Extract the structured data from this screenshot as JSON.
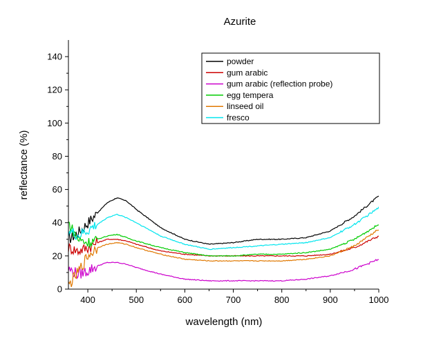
{
  "chart_data": {
    "type": "line",
    "title": "Azurite",
    "xlabel": "wavelength (nm)",
    "ylabel": "reflectance (%)",
    "xlim": [
      360,
      1000
    ],
    "ylim": [
      0,
      150
    ],
    "xticks": [
      400,
      500,
      600,
      700,
      800,
      900,
      1000
    ],
    "yticks": [
      0,
      20,
      40,
      60,
      80,
      100,
      120,
      140
    ],
    "grid": false,
    "legend_position": "top-right",
    "x": [
      360,
      380,
      400,
      420,
      440,
      460,
      480,
      500,
      550,
      600,
      650,
      700,
      750,
      800,
      850,
      900,
      950,
      1000
    ],
    "series": [
      {
        "name": "powder",
        "color": "#000000",
        "values": [
          30,
          34,
          40,
          46,
          52,
          55,
          53,
          48,
          37,
          30,
          27,
          28,
          30,
          30,
          31,
          35,
          44,
          56
        ]
      },
      {
        "name": "gum arabic",
        "color": "#cc0000",
        "values": [
          25,
          23,
          25,
          28,
          30,
          30,
          29,
          27,
          23,
          21,
          20,
          20,
          20,
          20,
          20,
          21,
          25,
          32
        ]
      },
      {
        "name": "gum arabic (reflection probe)",
        "color": "#cc00cc",
        "values": [
          12,
          9,
          11,
          14,
          16,
          16,
          15,
          13,
          9,
          6,
          5,
          5,
          5,
          5,
          6,
          8,
          12,
          18
        ]
      },
      {
        "name": "egg tempera",
        "color": "#00cc00",
        "values": [
          40,
          30,
          28,
          30,
          32,
          33,
          31,
          29,
          25,
          22,
          20,
          20,
          21,
          21,
          22,
          24,
          30,
          39
        ]
      },
      {
        "name": "linseed oil",
        "color": "#e07800",
        "values": [
          2,
          10,
          20,
          25,
          27,
          28,
          27,
          25,
          21,
          18,
          17,
          17,
          17,
          17,
          18,
          20,
          26,
          36
        ]
      },
      {
        "name": "fresco",
        "color": "#00e5ee",
        "values": [
          35,
          32,
          35,
          39,
          43,
          45,
          43,
          40,
          32,
          27,
          24,
          25,
          26,
          27,
          28,
          31,
          39,
          49
        ]
      }
    ]
  }
}
